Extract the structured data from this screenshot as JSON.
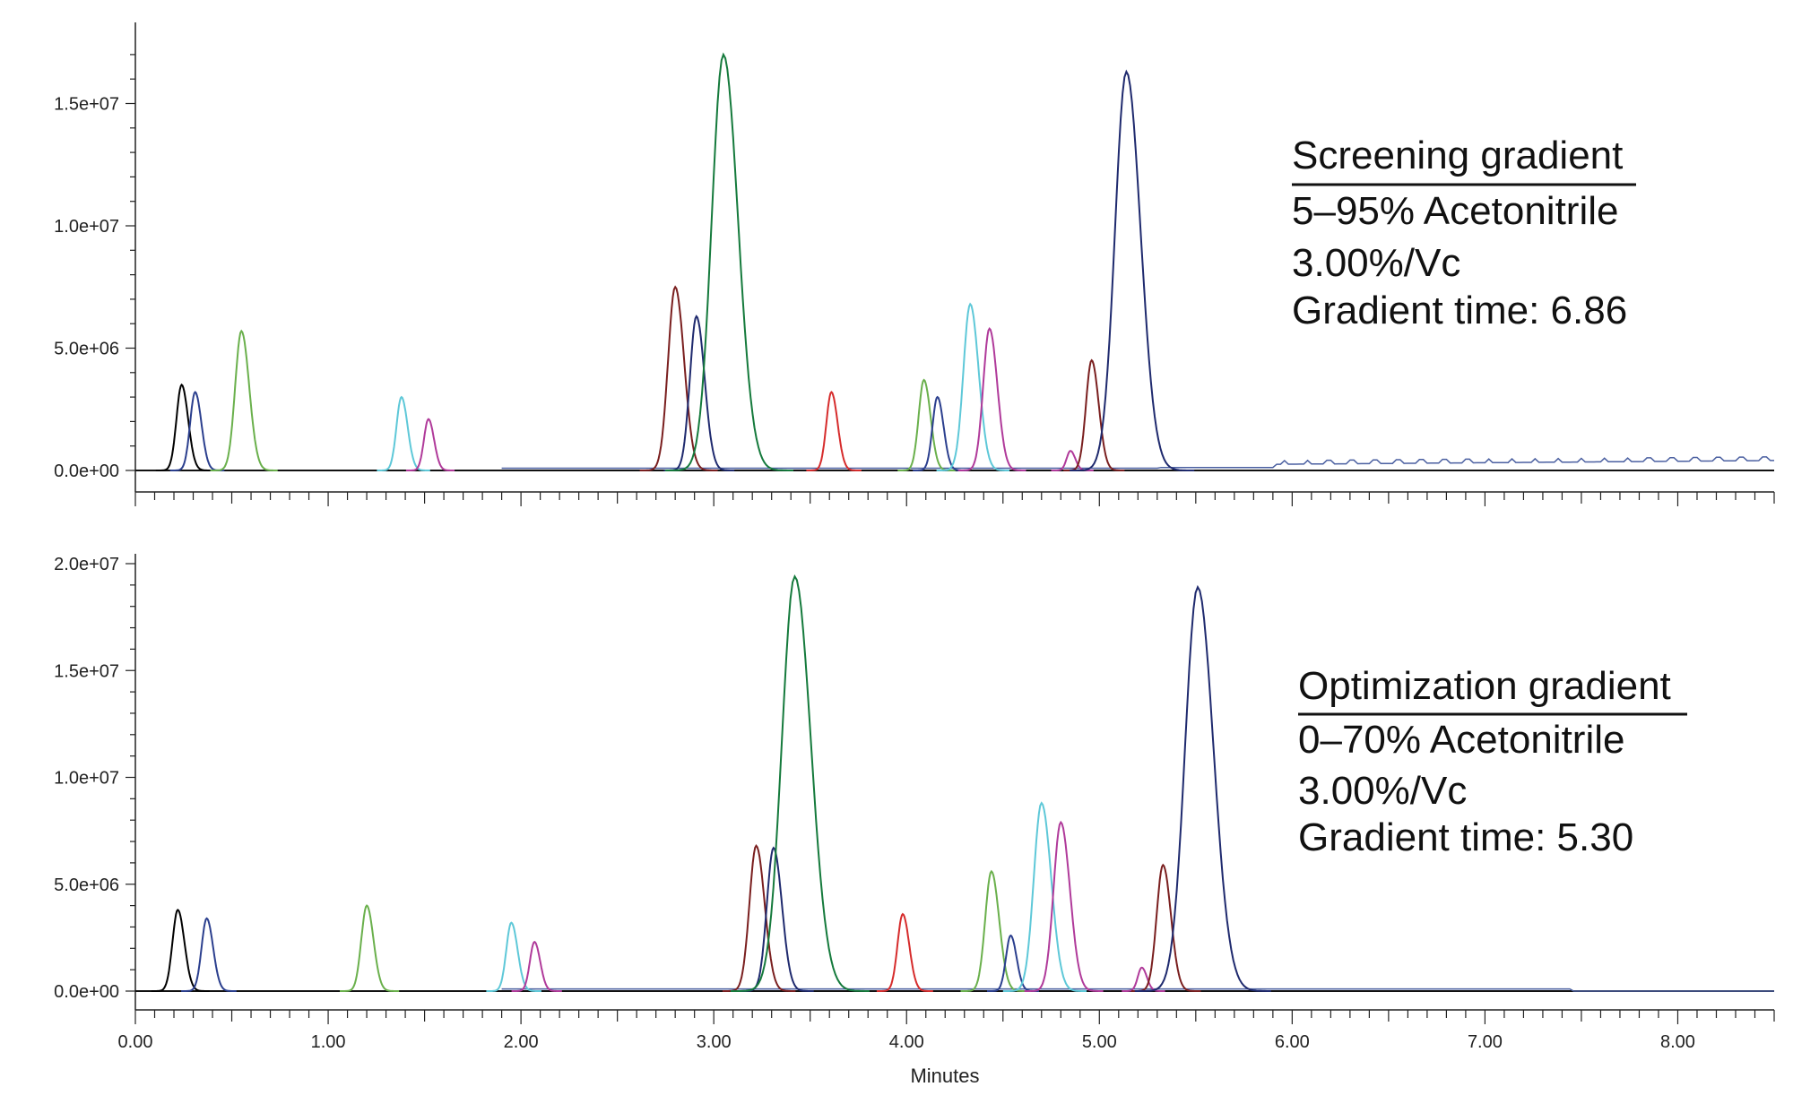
{
  "chart_data": [
    {
      "type": "line",
      "panel": "top",
      "xlabel": "",
      "ylabel": "",
      "xlim": [
        0.0,
        8.5
      ],
      "ylim": [
        -500000,
        17500000
      ],
      "yticks": [
        "0.0e+00",
        "5.0e+06",
        "1.0e+07",
        "1.5e+07"
      ],
      "ytick_values": [
        0,
        5000000,
        10000000,
        15000000
      ],
      "annotation": {
        "title": "Screening gradient",
        "lines": [
          "5–95% Acetonitrile",
          "3.00%/Vc",
          "Gradient time: 6.86"
        ]
      },
      "peaks": [
        {
          "x": 0.24,
          "y": 3500000,
          "color": "#000000"
        },
        {
          "x": 0.31,
          "y": 3200000,
          "color": "#2b3f8e"
        },
        {
          "x": 0.55,
          "y": 5700000,
          "color": "#6ab04c"
        },
        {
          "x": 1.38,
          "y": 3000000,
          "color": "#5ec8d8"
        },
        {
          "x": 1.52,
          "y": 2100000,
          "color": "#b03a9a"
        },
        {
          "x": 2.8,
          "y": 7500000,
          "color": "#7a1f1f"
        },
        {
          "x": 2.91,
          "y": 6300000,
          "color": "#1f2a6e"
        },
        {
          "x": 3.05,
          "y": 17000000,
          "color": "#157a3c"
        },
        {
          "x": 3.61,
          "y": 3200000,
          "color": "#d62c2c"
        },
        {
          "x": 4.09,
          "y": 3700000,
          "color": "#6ab04c"
        },
        {
          "x": 4.16,
          "y": 3000000,
          "color": "#2b3f8e"
        },
        {
          "x": 4.33,
          "y": 6800000,
          "color": "#5ec8d8"
        },
        {
          "x": 4.43,
          "y": 5800000,
          "color": "#b03a9a"
        },
        {
          "x": 4.85,
          "y": 800000,
          "color": "#b03a9a"
        },
        {
          "x": 4.96,
          "y": 4500000,
          "color": "#7a1f1f"
        },
        {
          "x": 5.14,
          "y": 16300000,
          "color": "#1f2a6e"
        }
      ]
    },
    {
      "type": "line",
      "panel": "bottom",
      "xlabel": "Minutes",
      "ylabel": "",
      "xlim": [
        0.0,
        8.5
      ],
      "ylim": [
        -800000,
        20500000
      ],
      "yticks": [
        "0.0e+00",
        "5.0e+06",
        "1.0e+07",
        "1.5e+07",
        "2.0e+07"
      ],
      "ytick_values": [
        0,
        5000000,
        10000000,
        15000000,
        20000000
      ],
      "xticks": [
        "0.00",
        "1.00",
        "2.00",
        "3.00",
        "4.00",
        "5.00",
        "6.00",
        "7.00",
        "8.00"
      ],
      "xtick_values": [
        0,
        1,
        2,
        3,
        4,
        5,
        6,
        7,
        8
      ],
      "annotation": {
        "title": "Optimization gradient",
        "lines": [
          "0–70% Acetonitrile",
          "3.00%/Vc",
          "Gradient time: 5.30"
        ]
      },
      "peaks": [
        {
          "x": 0.22,
          "y": 3800000,
          "color": "#000000"
        },
        {
          "x": 0.37,
          "y": 3400000,
          "color": "#2b3f8e"
        },
        {
          "x": 1.2,
          "y": 4000000,
          "color": "#6ab04c"
        },
        {
          "x": 1.95,
          "y": 3200000,
          "color": "#5ec8d8"
        },
        {
          "x": 2.07,
          "y": 2300000,
          "color": "#b03a9a"
        },
        {
          "x": 3.22,
          "y": 6800000,
          "color": "#7a1f1f"
        },
        {
          "x": 3.31,
          "y": 6700000,
          "color": "#1f2a6e"
        },
        {
          "x": 3.42,
          "y": 19400000,
          "color": "#157a3c"
        },
        {
          "x": 3.98,
          "y": 3600000,
          "color": "#d62c2c"
        },
        {
          "x": 4.44,
          "y": 5600000,
          "color": "#6ab04c"
        },
        {
          "x": 4.54,
          "y": 2600000,
          "color": "#2b3f8e"
        },
        {
          "x": 4.7,
          "y": 8800000,
          "color": "#5ec8d8"
        },
        {
          "x": 4.8,
          "y": 7900000,
          "color": "#b03a9a"
        },
        {
          "x": 5.22,
          "y": 1100000,
          "color": "#b03a9a"
        },
        {
          "x": 5.33,
          "y": 5900000,
          "color": "#7a1f1f"
        },
        {
          "x": 5.51,
          "y": 18900000,
          "color": "#1f2a6e"
        }
      ]
    }
  ]
}
